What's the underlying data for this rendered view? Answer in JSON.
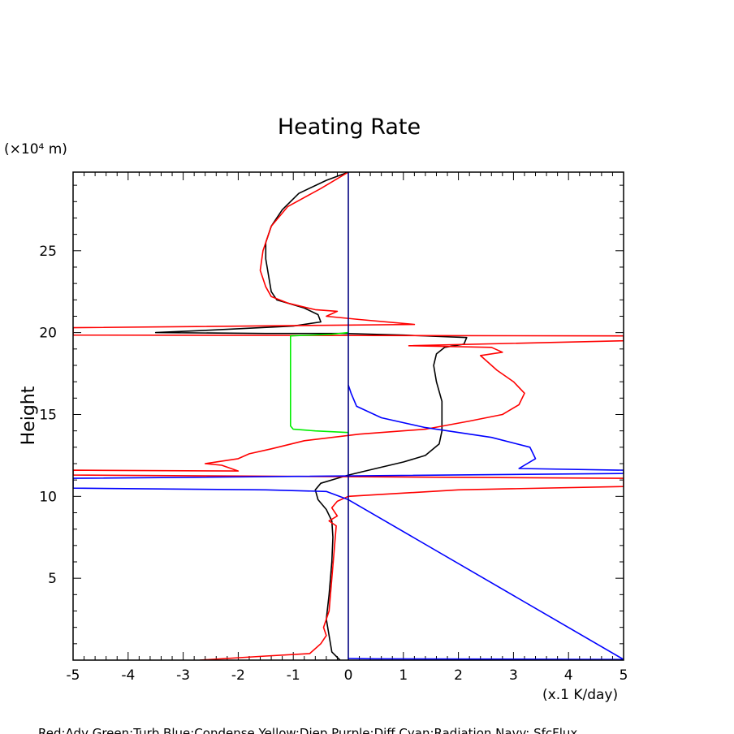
{
  "chart_data": {
    "type": "line",
    "title": "Heating Rate",
    "ylabel": "Height",
    "yunit": "(×10⁴ m)",
    "xunit": "(x.1 K/day)",
    "caption": "Red:Adv  Green:Turb  Blue:Condense  Yellow:Diep  Purple:Diff  Cyan:Radiation  Navy: SfcFlux",
    "xlim": [
      -5,
      5
    ],
    "ylim": [
      0,
      29.8
    ],
    "x_ticks": [
      -5,
      -4,
      -3,
      -2,
      -1,
      0,
      1,
      2,
      3,
      4,
      5
    ],
    "x_tick_labels": [
      "-5",
      "-4",
      "-3",
      "-2",
      "-1",
      "0",
      "1",
      "2",
      "3",
      "4",
      "5"
    ],
    "y_ticks": [
      5,
      10,
      15,
      20,
      25
    ],
    "y_tick_labels": [
      "5",
      "10",
      "15",
      "20",
      "25"
    ],
    "series": [
      {
        "color": "#000000",
        "points": [
          [
            -0.15,
            0
          ],
          [
            -0.3,
            0.5
          ],
          [
            -0.35,
            1.5
          ],
          [
            -0.4,
            2.5
          ],
          [
            -0.35,
            4
          ],
          [
            -0.3,
            6
          ],
          [
            -0.28,
            7.5
          ],
          [
            -0.3,
            8.5
          ],
          [
            -0.4,
            9.2
          ],
          [
            -0.55,
            9.8
          ],
          [
            -0.6,
            10.4
          ],
          [
            -0.5,
            10.8
          ],
          [
            -0.2,
            11.1
          ],
          [
            0,
            11.3
          ],
          [
            0.5,
            11.7
          ],
          [
            1,
            12.1
          ],
          [
            1.4,
            12.5
          ],
          [
            1.65,
            13.2
          ],
          [
            1.7,
            14
          ],
          [
            1.7,
            15
          ],
          [
            1.7,
            15.8
          ],
          [
            1.6,
            17
          ],
          [
            1.55,
            18
          ],
          [
            1.6,
            18.7
          ],
          [
            1.75,
            19.1
          ],
          [
            2.1,
            19.3
          ],
          [
            2.15,
            19.7
          ],
          [
            1.0,
            19.85
          ],
          [
            -0.1,
            19.95
          ],
          [
            -1.5,
            19.95
          ],
          [
            -3.5,
            20.0
          ],
          [
            -2.5,
            20.15
          ],
          [
            -1.0,
            20.4
          ],
          [
            -0.5,
            20.65
          ],
          [
            -0.55,
            21.1
          ],
          [
            -0.8,
            21.5
          ],
          [
            -1.3,
            22.0
          ],
          [
            -1.4,
            22.5
          ],
          [
            -1.45,
            23.5
          ],
          [
            -1.5,
            24.5
          ],
          [
            -1.5,
            25.5
          ],
          [
            -1.4,
            26.5
          ],
          [
            -1.2,
            27.5
          ],
          [
            -0.9,
            28.5
          ],
          [
            -0.4,
            29.3
          ],
          [
            0,
            29.8
          ]
        ]
      },
      {
        "color": "#ff0000",
        "points": [
          [
            -2.7,
            0
          ],
          [
            -1.5,
            0.25
          ],
          [
            -0.7,
            0.4
          ],
          [
            -0.5,
            1
          ],
          [
            -0.4,
            1.5
          ],
          [
            -0.45,
            2
          ],
          [
            -0.35,
            3
          ],
          [
            -0.3,
            5
          ],
          [
            -0.25,
            7
          ],
          [
            -0.22,
            8.2
          ],
          [
            -0.35,
            8.5
          ],
          [
            -0.2,
            8.8
          ],
          [
            -0.3,
            9.3
          ],
          [
            -0.2,
            9.7
          ],
          [
            0,
            10.0
          ],
          [
            2.0,
            10.4
          ],
          [
            5,
            10.6
          ],
          [
            5,
            11.1
          ],
          [
            -5,
            11.3
          ],
          [
            -5,
            11.6
          ],
          [
            -2.0,
            11.55
          ],
          [
            -2.3,
            11.9
          ],
          [
            -2.6,
            12.0
          ],
          [
            -2.0,
            12.3
          ],
          [
            -1.8,
            12.6
          ],
          [
            -1.4,
            12.9
          ],
          [
            -0.8,
            13.4
          ],
          [
            0.2,
            13.8
          ],
          [
            1.4,
            14.1
          ],
          [
            2.2,
            14.6
          ],
          [
            2.8,
            15.0
          ],
          [
            3.1,
            15.6
          ],
          [
            3.2,
            16.3
          ],
          [
            3.0,
            17.0
          ],
          [
            2.7,
            17.7
          ],
          [
            2.5,
            18.3
          ],
          [
            2.4,
            18.6
          ],
          [
            2.8,
            18.8
          ],
          [
            2.6,
            19.1
          ],
          [
            1.1,
            19.2
          ],
          [
            5,
            19.5
          ],
          [
            5,
            19.8
          ],
          [
            -5,
            19.85
          ],
          [
            -5,
            20.3
          ],
          [
            1.2,
            20.5
          ],
          [
            0.2,
            20.8
          ],
          [
            -0.4,
            21.0
          ],
          [
            -0.2,
            21.3
          ],
          [
            -0.6,
            21.4
          ],
          [
            -1.1,
            21.8
          ],
          [
            -1.4,
            22.2
          ],
          [
            -1.5,
            22.8
          ],
          [
            -1.6,
            23.8
          ],
          [
            -1.55,
            25.0
          ],
          [
            -1.4,
            26.5
          ],
          [
            -1.1,
            27.7
          ],
          [
            -0.5,
            28.8
          ],
          [
            0,
            29.8
          ]
        ]
      },
      {
        "color": "#00ee00",
        "points": [
          [
            0,
            13.9
          ],
          [
            -0.6,
            14.0
          ],
          [
            -1.0,
            14.1
          ],
          [
            -1.05,
            14.3
          ],
          [
            -1.05,
            19.8
          ],
          [
            -0.3,
            19.9
          ],
          [
            0,
            20.0
          ]
        ]
      },
      {
        "color": "#0000ff",
        "points": [
          [
            0,
            0.1
          ],
          [
            0.5,
            0.08
          ],
          [
            4,
            0.05
          ],
          [
            5,
            0.04
          ],
          [
            5,
            0.04
          ],
          [
            0,
            9.8
          ],
          [
            -0.4,
            10.3
          ],
          [
            -1.5,
            10.4
          ],
          [
            -5,
            10.5
          ],
          [
            -5,
            11.1
          ],
          [
            5,
            11.4
          ],
          [
            5,
            11.6
          ],
          [
            3.1,
            11.7
          ],
          [
            3.4,
            12.3
          ],
          [
            3.3,
            13.0
          ],
          [
            2.6,
            13.6
          ],
          [
            1.4,
            14.2
          ],
          [
            0.6,
            14.8
          ],
          [
            0.15,
            15.5
          ],
          [
            0.05,
            16.3
          ],
          [
            0,
            16.8
          ]
        ]
      },
      {
        "color": "#000080",
        "points": [
          [
            0,
            0
          ],
          [
            0,
            29.8
          ]
        ]
      }
    ]
  }
}
